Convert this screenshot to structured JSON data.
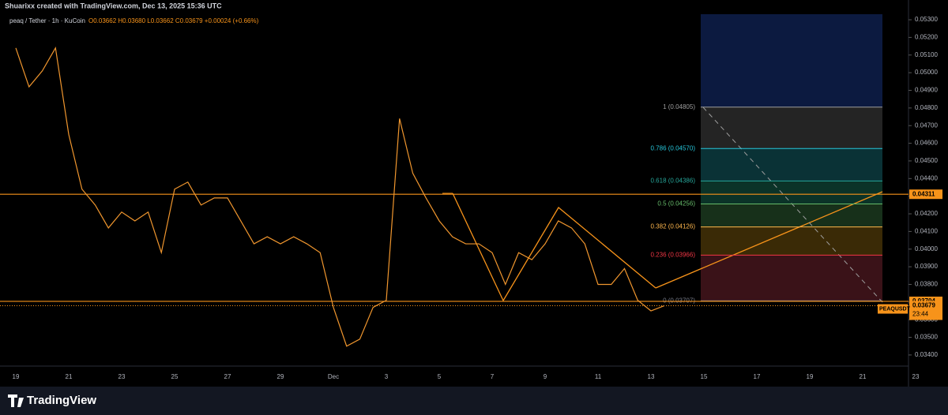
{
  "chart_data": {
    "type": "line",
    "attribution": "Shuarixx created with TradingView.com, Dec 13, 2025 15:36 UTC",
    "title": "peaq / Tether · 1h · KuCoin",
    "quote": "O0.03662 H0.03680 L0.03662 C0.03679 +0.00024 (+0.66%)",
    "watermark": "TradingView",
    "categories": [
      "19",
      null,
      null,
      null,
      "21",
      null,
      null,
      null,
      "23",
      null,
      null,
      null,
      "25",
      null,
      null,
      null,
      "27",
      null,
      null,
      null,
      "29",
      null,
      null,
      null,
      "Dec",
      null,
      null,
      null,
      "3",
      null,
      null,
      null,
      "5",
      null,
      null,
      null,
      "7",
      null,
      null,
      null,
      "9",
      null,
      null,
      null,
      "11",
      null,
      null,
      null,
      "13",
      null,
      null,
      null,
      "15",
      null,
      null,
      null,
      "17",
      null,
      null,
      null,
      "19",
      null,
      null,
      null,
      "21",
      null,
      null,
      null,
      "23"
    ],
    "series": [
      {
        "name": "PEAQUSDT",
        "color": "#f0962e",
        "values": [
          0.0514,
          0.0492,
          0.0501,
          0.0514,
          0.0465,
          0.0434,
          0.0425,
          0.0412,
          0.0421,
          0.0416,
          0.0421,
          0.0398,
          0.0434,
          0.0438,
          0.0425,
          0.0429,
          0.0429,
          0.0416,
          0.0403,
          0.0407,
          0.0403,
          0.0407,
          0.0403,
          0.0398,
          0.0367,
          0.0345,
          0.0349,
          0.0367,
          0.0371,
          0.0474,
          0.0443,
          0.0429,
          0.0416,
          0.0407,
          0.0403,
          0.0403,
          0.0398,
          0.038,
          0.0398,
          0.0394,
          0.0403,
          0.0416,
          0.0412,
          0.0403,
          0.038,
          0.038,
          0.0389,
          0.0371,
          0.0365,
          0.03679,
          null,
          null,
          null,
          null,
          null,
          null,
          null,
          null,
          null,
          null,
          null,
          null,
          null,
          null,
          null,
          null,
          null,
          null,
          null
        ]
      }
    ],
    "ylim": [
      0.03346,
      0.05412
    ],
    "yticks": [
      {
        "value": 0.034,
        "label": "0.03400"
      },
      {
        "value": 0.035,
        "label": "0.03500"
      },
      {
        "value": 0.036,
        "label": "0.03600"
      },
      {
        "value": 0.037,
        "label": "0.03700"
      },
      {
        "value": 0.038,
        "label": "0.03800"
      },
      {
        "value": 0.039,
        "label": "0.03900"
      },
      {
        "value": 0.04,
        "label": "0.04000"
      },
      {
        "value": 0.041,
        "label": "0.04100"
      },
      {
        "value": 0.042,
        "label": "0.04200"
      },
      {
        "value": 0.043,
        "label": "0.04300"
      },
      {
        "value": 0.044,
        "label": "0.04400"
      },
      {
        "value": 0.045,
        "label": "0.04500"
      },
      {
        "value": 0.046,
        "label": "0.04600"
      },
      {
        "value": 0.047,
        "label": "0.04700"
      },
      {
        "value": 0.048,
        "label": "0.04800"
      },
      {
        "value": 0.049,
        "label": "0.04900"
      },
      {
        "value": 0.05,
        "label": "0.05000"
      },
      {
        "value": 0.051,
        "label": "0.05100"
      },
      {
        "value": 0.052,
        "label": "0.05200"
      },
      {
        "value": 0.053,
        "label": "0.05300"
      }
    ],
    "hlines": [
      {
        "value": 0.04311,
        "label": "0.04311",
        "color": "#f7931a"
      },
      {
        "value": 0.03704,
        "label": "0.03704",
        "color": "#f7931a"
      }
    ],
    "last_price": {
      "value": 0.03679,
      "label": "0.03679",
      "countdown": "23:44"
    },
    "fib": [
      {
        "value": 0.04805,
        "label": "1 (0.04805)",
        "color": "#9e9e9e",
        "fill": "#242424"
      },
      {
        "value": 0.0457,
        "label": "0.786 (0.04570)",
        "color": "#26c6da",
        "fill": "#0a3236"
      },
      {
        "value": 0.04386,
        "label": "0.618 (0.04386)",
        "color": "#26a69a",
        "fill": "#0b3328"
      },
      {
        "value": 0.04256,
        "label": "0.5 (0.04256)",
        "color": "#66bb6a",
        "fill": "#17301a"
      },
      {
        "value": 0.04126,
        "label": "0.382 (0.04126)",
        "color": "#ffb74d",
        "fill": "#3a2a06"
      },
      {
        "value": 0.03966,
        "label": "0.236 (0.03966)",
        "color": "#f23645",
        "fill": "#3a1218"
      },
      {
        "value": 0.03707,
        "label": "0 (0.03707)",
        "color": "#787b86",
        "fill": null
      }
    ]
  }
}
